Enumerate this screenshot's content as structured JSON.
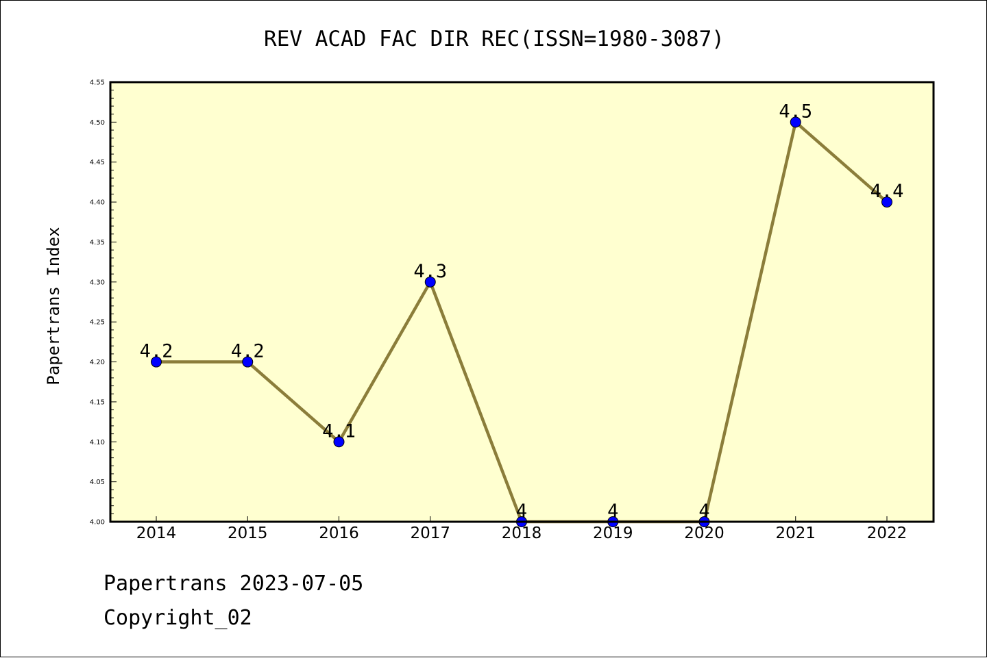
{
  "chart_data": {
    "type": "line",
    "title": "REV ACAD FAC DIR REC(ISSN=1980-3087)",
    "xlabel": "",
    "ylabel": "Papertrans Index",
    "categories": [
      "2014",
      "2015",
      "2016",
      "2017",
      "2018",
      "2019",
      "2020",
      "2021",
      "2022"
    ],
    "series": [
      {
        "values": [
          4.2,
          4.2,
          4.1,
          4.3,
          4.0,
          4.0,
          4.0,
          4.5,
          4.4
        ],
        "point_labels": [
          "4.2",
          "4.2",
          "4.1",
          "4.3",
          "4",
          "4",
          "4",
          "4.5",
          "4.4"
        ]
      }
    ],
    "ylim": [
      4.0,
      4.55
    ],
    "yticks": [
      "4.00",
      "4.05",
      "4.10",
      "4.15",
      "4.20",
      "4.25",
      "4.30",
      "4.35",
      "4.40",
      "4.45",
      "4.50",
      "4.55"
    ],
    "grid": false,
    "colors": {
      "plot_background": "#ffffd0",
      "line": "#8b7d3a",
      "marker": "#0000ff"
    }
  },
  "footer": {
    "line1": "Papertrans 2023-07-05",
    "line2": "Copyright_02"
  }
}
